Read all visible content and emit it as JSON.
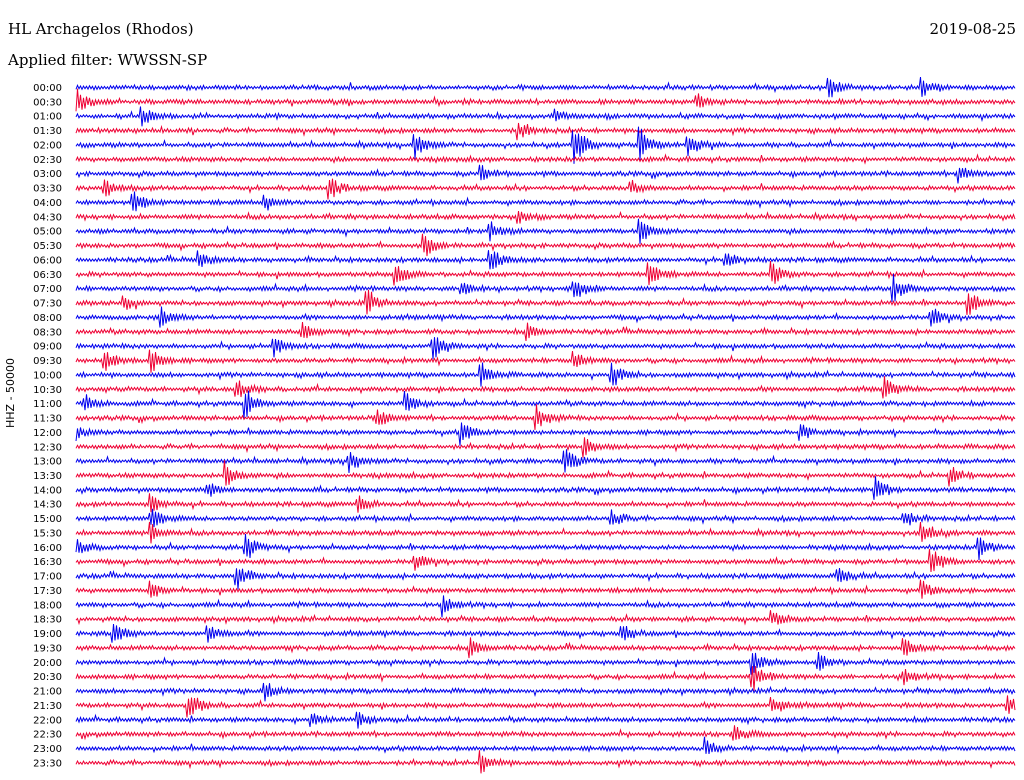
{
  "header": {
    "station": "HL Archagelos (Rhodos)",
    "date": "2019-08-25",
    "filter": "Applied filter: WWSSN-SP"
  },
  "y_axis_label": "HHZ - 50000",
  "colors": {
    "even_trace": "#0000ee",
    "odd_trace": "#ee0033",
    "background": "#ffffff"
  },
  "chart_data": {
    "type": "line",
    "title": "HL Archagelos (Rhodos)",
    "subtitle": "Applied filter: WWSSN-SP",
    "ylabel": "HHZ - 50000",
    "xlabel": "",
    "grid": false,
    "tick_labels": [
      "00:00",
      "00:30",
      "01:00",
      "01:30",
      "02:00",
      "02:30",
      "03:00",
      "03:30",
      "04:00",
      "04:30",
      "05:00",
      "05:30",
      "06:00",
      "06:30",
      "07:00",
      "07:30",
      "08:00",
      "08:30",
      "09:00",
      "09:30",
      "10:00",
      "10:30",
      "11:00",
      "11:30",
      "12:00",
      "12:30",
      "13:00",
      "13:30",
      "14:00",
      "14:30",
      "15:00",
      "15:30",
      "16:00",
      "16:30",
      "17:00",
      "17:30",
      "18:00",
      "18:30",
      "19:00",
      "19:30",
      "20:00",
      "20:30",
      "21:00",
      "21:30",
      "22:00",
      "22:30",
      "23:00",
      "23:30"
    ],
    "trace_colors": [
      "#0000ee",
      "#ee0033"
    ],
    "events": [
      {
        "row": 0,
        "t": 0.8,
        "amp": 1.0
      },
      {
        "row": 0,
        "t": 0.9,
        "amp": 0.8
      },
      {
        "row": 1,
        "t": 0.0,
        "amp": 1.0
      },
      {
        "row": 1,
        "t": 0.66,
        "amp": 0.6
      },
      {
        "row": 2,
        "t": 0.07,
        "amp": 0.7
      },
      {
        "row": 2,
        "t": 0.51,
        "amp": 0.5
      },
      {
        "row": 3,
        "t": 0.47,
        "amp": 0.7
      },
      {
        "row": 4,
        "t": 0.36,
        "amp": 1.0
      },
      {
        "row": 4,
        "t": 0.53,
        "amp": 1.5
      },
      {
        "row": 4,
        "t": 0.6,
        "amp": 1.2
      },
      {
        "row": 4,
        "t": 0.65,
        "amp": 1.0
      },
      {
        "row": 6,
        "t": 0.43,
        "amp": 0.6
      },
      {
        "row": 6,
        "t": 0.94,
        "amp": 0.6
      },
      {
        "row": 7,
        "t": 0.03,
        "amp": 0.7
      },
      {
        "row": 7,
        "t": 0.27,
        "amp": 0.8
      },
      {
        "row": 7,
        "t": 0.59,
        "amp": 0.5
      },
      {
        "row": 8,
        "t": 0.06,
        "amp": 1.0
      },
      {
        "row": 8,
        "t": 0.2,
        "amp": 0.7
      },
      {
        "row": 9,
        "t": 0.47,
        "amp": 0.5
      },
      {
        "row": 10,
        "t": 0.44,
        "amp": 0.7
      },
      {
        "row": 10,
        "t": 0.6,
        "amp": 0.8
      },
      {
        "row": 11,
        "t": 0.37,
        "amp": 0.9
      },
      {
        "row": 12,
        "t": 0.13,
        "amp": 0.6
      },
      {
        "row": 12,
        "t": 0.44,
        "amp": 1.0
      },
      {
        "row": 12,
        "t": 0.69,
        "amp": 0.6
      },
      {
        "row": 13,
        "t": 0.34,
        "amp": 1.0
      },
      {
        "row": 13,
        "t": 0.61,
        "amp": 0.9
      },
      {
        "row": 13,
        "t": 0.74,
        "amp": 1.0
      },
      {
        "row": 14,
        "t": 0.41,
        "amp": 0.7
      },
      {
        "row": 14,
        "t": 0.53,
        "amp": 0.9
      },
      {
        "row": 14,
        "t": 0.87,
        "amp": 0.9
      },
      {
        "row": 15,
        "t": 0.05,
        "amp": 0.7
      },
      {
        "row": 15,
        "t": 0.31,
        "amp": 0.9
      },
      {
        "row": 15,
        "t": 0.95,
        "amp": 0.8
      },
      {
        "row": 16,
        "t": 0.09,
        "amp": 0.7
      },
      {
        "row": 16,
        "t": 0.91,
        "amp": 0.8
      },
      {
        "row": 17,
        "t": 0.24,
        "amp": 0.7
      },
      {
        "row": 17,
        "t": 0.48,
        "amp": 0.6
      },
      {
        "row": 18,
        "t": 0.21,
        "amp": 0.7
      },
      {
        "row": 18,
        "t": 0.38,
        "amp": 0.9
      },
      {
        "row": 19,
        "t": 0.03,
        "amp": 0.9
      },
      {
        "row": 19,
        "t": 0.08,
        "amp": 0.8
      },
      {
        "row": 19,
        "t": 0.53,
        "amp": 0.6
      },
      {
        "row": 20,
        "t": 0.43,
        "amp": 0.9
      },
      {
        "row": 20,
        "t": 0.57,
        "amp": 0.9
      },
      {
        "row": 21,
        "t": 0.17,
        "amp": 0.8
      },
      {
        "row": 21,
        "t": 0.86,
        "amp": 0.8
      },
      {
        "row": 22,
        "t": 0.01,
        "amp": 0.7
      },
      {
        "row": 22,
        "t": 0.18,
        "amp": 1.0
      },
      {
        "row": 22,
        "t": 0.35,
        "amp": 0.9
      },
      {
        "row": 23,
        "t": 0.32,
        "amp": 0.8
      },
      {
        "row": 23,
        "t": 0.49,
        "amp": 0.9
      },
      {
        "row": 24,
        "t": 0.0,
        "amp": 0.5
      },
      {
        "row": 24,
        "t": 0.41,
        "amp": 0.8
      },
      {
        "row": 24,
        "t": 0.77,
        "amp": 0.6
      },
      {
        "row": 25,
        "t": 0.54,
        "amp": 0.8
      },
      {
        "row": 26,
        "t": 0.29,
        "amp": 0.8
      },
      {
        "row": 26,
        "t": 0.52,
        "amp": 1.0
      },
      {
        "row": 27,
        "t": 0.16,
        "amp": 1.0
      },
      {
        "row": 27,
        "t": 0.93,
        "amp": 0.7
      },
      {
        "row": 28,
        "t": 0.14,
        "amp": 0.6
      },
      {
        "row": 28,
        "t": 0.85,
        "amp": 0.9
      },
      {
        "row": 29,
        "t": 0.08,
        "amp": 0.7
      },
      {
        "row": 29,
        "t": 0.3,
        "amp": 0.6
      },
      {
        "row": 30,
        "t": 0.08,
        "amp": 0.8
      },
      {
        "row": 30,
        "t": 0.57,
        "amp": 0.6
      },
      {
        "row": 30,
        "t": 0.88,
        "amp": 0.7
      },
      {
        "row": 31,
        "t": 0.08,
        "amp": 0.7
      },
      {
        "row": 31,
        "t": 0.9,
        "amp": 0.9
      },
      {
        "row": 32,
        "t": 0.0,
        "amp": 0.6
      },
      {
        "row": 32,
        "t": 0.18,
        "amp": 1.0
      },
      {
        "row": 32,
        "t": 0.96,
        "amp": 0.9
      },
      {
        "row": 33,
        "t": 0.36,
        "amp": 0.7
      },
      {
        "row": 33,
        "t": 0.91,
        "amp": 1.0
      },
      {
        "row": 34,
        "t": 0.17,
        "amp": 1.0
      },
      {
        "row": 34,
        "t": 0.81,
        "amp": 0.8
      },
      {
        "row": 35,
        "t": 0.08,
        "amp": 0.6
      },
      {
        "row": 35,
        "t": 0.9,
        "amp": 0.7
      },
      {
        "row": 36,
        "t": 0.39,
        "amp": 0.7
      },
      {
        "row": 37,
        "t": 0.74,
        "amp": 0.6
      },
      {
        "row": 38,
        "t": 0.04,
        "amp": 0.8
      },
      {
        "row": 38,
        "t": 0.14,
        "amp": 0.8
      },
      {
        "row": 38,
        "t": 0.58,
        "amp": 0.6
      },
      {
        "row": 39,
        "t": 0.42,
        "amp": 0.7
      },
      {
        "row": 39,
        "t": 0.88,
        "amp": 0.7
      },
      {
        "row": 40,
        "t": 0.72,
        "amp": 0.8
      },
      {
        "row": 40,
        "t": 0.79,
        "amp": 0.7
      },
      {
        "row": 41,
        "t": 0.72,
        "amp": 1.0
      },
      {
        "row": 41,
        "t": 0.88,
        "amp": 0.6
      },
      {
        "row": 42,
        "t": 0.2,
        "amp": 0.7
      },
      {
        "row": 43,
        "t": 0.12,
        "amp": 1.0
      },
      {
        "row": 43,
        "t": 0.74,
        "amp": 0.8
      },
      {
        "row": 43,
        "t": 0.99,
        "amp": 0.7
      },
      {
        "row": 44,
        "t": 0.25,
        "amp": 0.6
      },
      {
        "row": 44,
        "t": 0.3,
        "amp": 0.6
      },
      {
        "row": 45,
        "t": 0.7,
        "amp": 0.6
      },
      {
        "row": 46,
        "t": 0.67,
        "amp": 0.7
      },
      {
        "row": 47,
        "t": 0.43,
        "amp": 0.9
      }
    ]
  }
}
